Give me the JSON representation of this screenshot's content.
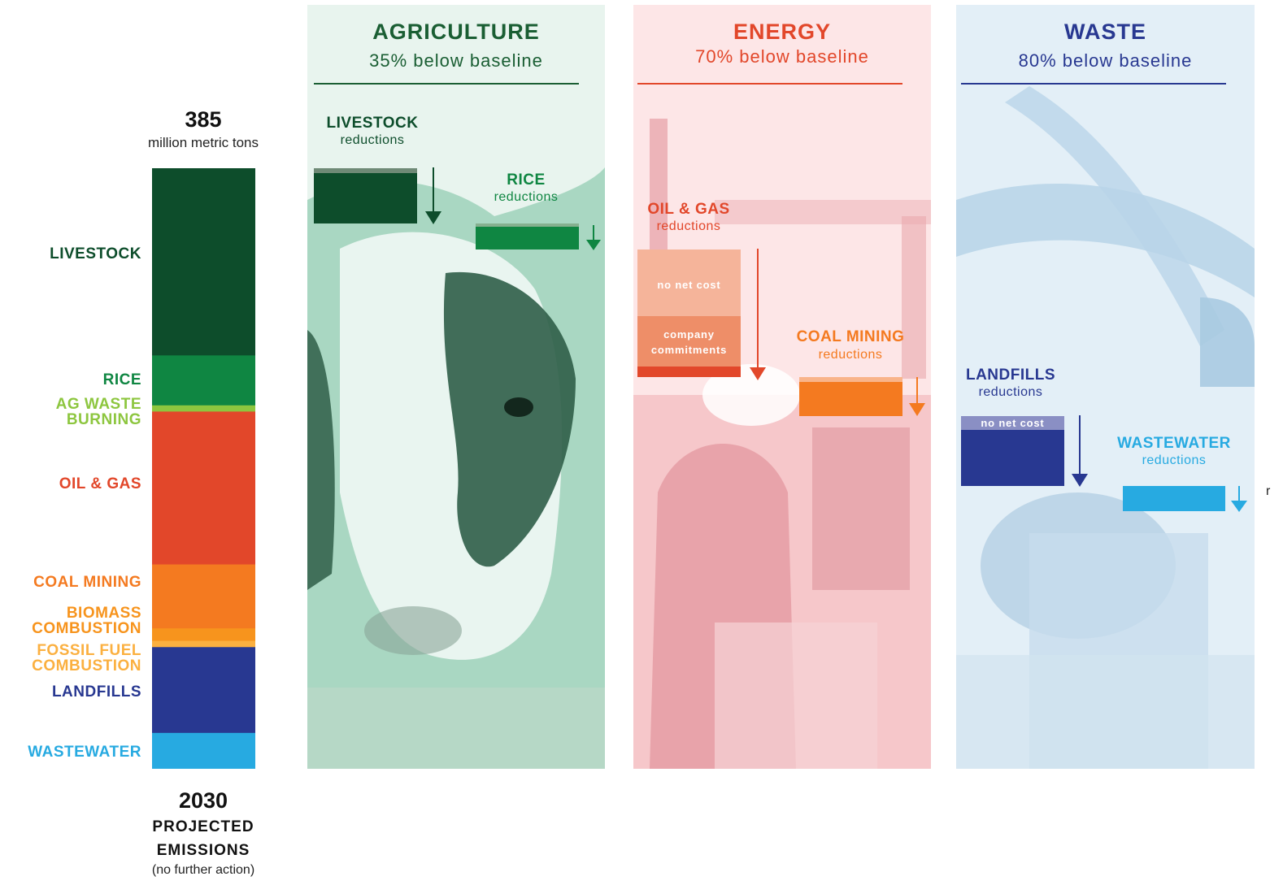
{
  "total": {
    "value": "385",
    "unit": "million metric tons"
  },
  "footer": {
    "year": "2030",
    "line1": "PROJECTED",
    "line2": "EMISSIONS",
    "line3": "(no further action)"
  },
  "segments": [
    {
      "label": "LIVESTOCK",
      "color": "#0d4d2b"
    },
    {
      "label": "RICE",
      "color": "#0f8642"
    },
    {
      "label_line1": "AG WASTE",
      "label_line2": "BURNING",
      "color": "#8dc63f"
    },
    {
      "label": "OIL & GAS",
      "color": "#e2472a"
    },
    {
      "label": "COAL MINING",
      "color": "#f47a20"
    },
    {
      "label_line1": "BIOMASS",
      "label_line2": "COMBUSTION",
      "color": "#f7941d"
    },
    {
      "label_line1": "FOSSIL FUEL",
      "label_line2": "COMBUSTION",
      "color": "#fbb040"
    },
    {
      "label": "LANDFILLS",
      "color": "#283891"
    },
    {
      "label": "WASTEWATER",
      "color": "#27aae1"
    }
  ],
  "panels": {
    "agriculture": {
      "title": "AGRICULTURE",
      "subtitle": "35% below baseline",
      "color": "#1a5e33",
      "livestock": {
        "label": "LIVESTOCK",
        "sub": "reductions"
      },
      "rice": {
        "label": "RICE",
        "sub": "reductions"
      }
    },
    "energy": {
      "title": "ENERGY",
      "subtitle": "70% below baseline",
      "color": "#e2472a",
      "oil_gas": {
        "label": "OIL & GAS",
        "sub": "reductions",
        "no_net_cost": "no net cost",
        "company_line1": "company",
        "company_line2": "commitments"
      },
      "coal": {
        "label": "COAL MINING",
        "sub": "reductions"
      }
    },
    "waste": {
      "title": "WASTE",
      "subtitle": "80% below baseline",
      "color": "#283891",
      "landfills": {
        "label": "LANDFILLS",
        "sub": "reductions",
        "no_net_cost": "no net cost"
      },
      "wastewater": {
        "label": "WASTEWATER",
        "sub": "reductions"
      }
    }
  },
  "edge_fragment": "r",
  "chart_data": {
    "type": "bar",
    "title": "2030 PROJECTED EMISSIONS (no further action)",
    "total": 385,
    "unit": "million metric tons",
    "categories": [
      "LIVESTOCK",
      "RICE",
      "AG WASTE BURNING",
      "OIL & GAS",
      "COAL MINING",
      "BIOMASS COMBUSTION",
      "FOSSIL FUEL COMBUSTION",
      "LANDFILLS",
      "WASTEWATER"
    ],
    "values": [
      120,
      32,
      4,
      98,
      41,
      8,
      4,
      55,
      23
    ],
    "sector_targets": [
      {
        "sector": "AGRICULTURE",
        "reduction": "35% below baseline"
      },
      {
        "sector": "ENERGY",
        "reduction": "70% below baseline"
      },
      {
        "sector": "WASTE",
        "reduction": "80% below baseline"
      }
    ]
  }
}
